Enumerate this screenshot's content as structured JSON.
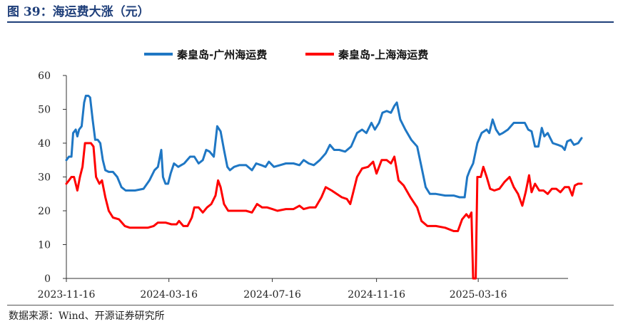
{
  "figure": {
    "title": "图 39：海运费大涨（元）",
    "source": "数据来源：Wind、开源证券研究所"
  },
  "chart_data": {
    "type": "line",
    "title": "",
    "xlabel": "",
    "ylabel": "",
    "ylim": [
      0,
      60
    ],
    "yticks": [
      0,
      10,
      20,
      30,
      40,
      50,
      60
    ],
    "xlim": [
      "2023-11-16",
      "2025-06-30"
    ],
    "xticks": [
      "2023-11-16",
      "2024-03-16",
      "2024-07-16",
      "2024-11-16",
      "2025-03-16"
    ],
    "grid": false,
    "legend_position": "top",
    "series": [
      {
        "name": "秦皇岛-广州海运费",
        "color": "#1f77c4",
        "points": [
          [
            "2023-11-16",
            35
          ],
          [
            "2023-11-19",
            36
          ],
          [
            "2023-11-22",
            36
          ],
          [
            "2023-11-24",
            43
          ],
          [
            "2023-11-27",
            44
          ],
          [
            "2023-11-29",
            42
          ],
          [
            "2023-12-01",
            44
          ],
          [
            "2023-12-04",
            45
          ],
          [
            "2023-12-07",
            52
          ],
          [
            "2023-12-09",
            54
          ],
          [
            "2023-12-12",
            54
          ],
          [
            "2023-12-14",
            53.5
          ],
          [
            "2023-12-17",
            47
          ],
          [
            "2023-12-20",
            41
          ],
          [
            "2023-12-23",
            41
          ],
          [
            "2023-12-26",
            40
          ],
          [
            "2023-12-29",
            35
          ],
          [
            "2024-01-01",
            32
          ],
          [
            "2024-01-05",
            31.5
          ],
          [
            "2024-01-10",
            31.5
          ],
          [
            "2024-01-15",
            30
          ],
          [
            "2024-01-20",
            27
          ],
          [
            "2024-01-25",
            26
          ],
          [
            "2024-02-05",
            26
          ],
          [
            "2024-02-15",
            26.5
          ],
          [
            "2024-02-22",
            29
          ],
          [
            "2024-02-28",
            32
          ],
          [
            "2024-03-03",
            33
          ],
          [
            "2024-03-07",
            38
          ],
          [
            "2024-03-09",
            30
          ],
          [
            "2024-03-12",
            28
          ],
          [
            "2024-03-15",
            28
          ],
          [
            "2024-03-18",
            31
          ],
          [
            "2024-03-22",
            34
          ],
          [
            "2024-03-27",
            33
          ],
          [
            "2024-04-03",
            34
          ],
          [
            "2024-04-10",
            36
          ],
          [
            "2024-04-15",
            36
          ],
          [
            "2024-04-20",
            34
          ],
          [
            "2024-04-25",
            35
          ],
          [
            "2024-04-29",
            38
          ],
          [
            "2024-05-03",
            37.5
          ],
          [
            "2024-05-08",
            36
          ],
          [
            "2024-05-12",
            45
          ],
          [
            "2024-05-16",
            43.5
          ],
          [
            "2024-05-20",
            38
          ],
          [
            "2024-05-24",
            33
          ],
          [
            "2024-05-27",
            32
          ],
          [
            "2024-06-01",
            33
          ],
          [
            "2024-06-07",
            33.5
          ],
          [
            "2024-06-15",
            33.5
          ],
          [
            "2024-06-22",
            32
          ],
          [
            "2024-06-27",
            34
          ],
          [
            "2024-07-03",
            33.5
          ],
          [
            "2024-07-08",
            33
          ],
          [
            "2024-07-12",
            34.5
          ],
          [
            "2024-07-18",
            33
          ],
          [
            "2024-07-25",
            33.5
          ],
          [
            "2024-08-01",
            34
          ],
          [
            "2024-08-10",
            34
          ],
          [
            "2024-08-17",
            33.5
          ],
          [
            "2024-08-22",
            35
          ],
          [
            "2024-08-28",
            34
          ],
          [
            "2024-09-03",
            33.5
          ],
          [
            "2024-09-10",
            35
          ],
          [
            "2024-09-17",
            37
          ],
          [
            "2024-09-22",
            39.5
          ],
          [
            "2024-09-27",
            38
          ],
          [
            "2024-10-03",
            38
          ],
          [
            "2024-10-10",
            37.5
          ],
          [
            "2024-10-17",
            39
          ],
          [
            "2024-10-24",
            43
          ],
          [
            "2024-10-30",
            44
          ],
          [
            "2024-11-04",
            43
          ],
          [
            "2024-11-10",
            46
          ],
          [
            "2024-11-14",
            44
          ],
          [
            "2024-11-19",
            46
          ],
          [
            "2024-11-23",
            49
          ],
          [
            "2024-11-28",
            49.5
          ],
          [
            "2024-12-03",
            49
          ],
          [
            "2024-12-07",
            51
          ],
          [
            "2024-12-10",
            52
          ],
          [
            "2024-12-14",
            47
          ],
          [
            "2024-12-20",
            44
          ],
          [
            "2024-12-27",
            41
          ],
          [
            "2025-01-03",
            39
          ],
          [
            "2025-01-08",
            33
          ],
          [
            "2025-01-13",
            27
          ],
          [
            "2025-01-18",
            25
          ],
          [
            "2025-01-25",
            25
          ],
          [
            "2025-02-05",
            24.5
          ],
          [
            "2025-02-15",
            24.5
          ],
          [
            "2025-02-22",
            24
          ],
          [
            "2025-02-28",
            24
          ],
          [
            "2025-03-03",
            30
          ],
          [
            "2025-03-06",
            32
          ],
          [
            "2025-03-10",
            34
          ],
          [
            "2025-03-15",
            40
          ],
          [
            "2025-03-20",
            43
          ],
          [
            "2025-03-26",
            44
          ],
          [
            "2025-03-29",
            43
          ],
          [
            "2025-04-02",
            47
          ],
          [
            "2025-04-06",
            44
          ],
          [
            "2025-04-10",
            42.5
          ],
          [
            "2025-04-14",
            43
          ],
          [
            "2025-04-20",
            44
          ],
          [
            "2025-04-27",
            46
          ],
          [
            "2025-05-04",
            46
          ],
          [
            "2025-05-10",
            46
          ],
          [
            "2025-05-14",
            44
          ],
          [
            "2025-05-18",
            43.5
          ],
          [
            "2025-05-22",
            39
          ],
          [
            "2025-05-26",
            39
          ],
          [
            "2025-05-30",
            44.5
          ],
          [
            "2025-06-02",
            42
          ],
          [
            "2025-06-06",
            43
          ],
          [
            "2025-06-12",
            40
          ],
          [
            "2025-06-18",
            39.5
          ],
          [
            "2025-06-23",
            39
          ],
          [
            "2025-06-26",
            38
          ],
          [
            "2025-06-29",
            40.5
          ],
          [
            "2025-07-03",
            41
          ],
          [
            "2025-07-07",
            39.5
          ],
          [
            "2025-07-12",
            40
          ],
          [
            "2025-07-16",
            41.5
          ]
        ]
      },
      {
        "name": "秦皇岛-上海海运费",
        "color": "#ff0000",
        "points": [
          [
            "2023-11-16",
            28
          ],
          [
            "2023-11-19",
            29
          ],
          [
            "2023-11-22",
            30
          ],
          [
            "2023-11-25",
            30
          ],
          [
            "2023-11-29",
            26
          ],
          [
            "2023-12-02",
            30
          ],
          [
            "2023-12-05",
            33
          ],
          [
            "2023-12-08",
            40
          ],
          [
            "2023-12-12",
            40
          ],
          [
            "2023-12-15",
            40
          ],
          [
            "2023-12-18",
            39
          ],
          [
            "2023-12-21",
            30
          ],
          [
            "2023-12-25",
            28
          ],
          [
            "2023-12-28",
            29
          ],
          [
            "2024-01-01",
            24
          ],
          [
            "2024-01-05",
            20
          ],
          [
            "2024-01-10",
            18
          ],
          [
            "2024-01-17",
            17.5
          ],
          [
            "2024-01-24",
            15.5
          ],
          [
            "2024-01-30",
            15
          ],
          [
            "2024-02-10",
            15
          ],
          [
            "2024-02-20",
            15
          ],
          [
            "2024-02-27",
            15.5
          ],
          [
            "2024-03-03",
            16.5
          ],
          [
            "2024-03-12",
            16.5
          ],
          [
            "2024-03-19",
            16
          ],
          [
            "2024-03-25",
            16
          ],
          [
            "2024-03-28",
            17
          ],
          [
            "2024-04-02",
            15.5
          ],
          [
            "2024-04-07",
            15.5
          ],
          [
            "2024-04-12",
            18
          ],
          [
            "2024-04-15",
            21
          ],
          [
            "2024-04-20",
            21
          ],
          [
            "2024-04-25",
            19.5
          ],
          [
            "2024-04-30",
            21
          ],
          [
            "2024-05-05",
            22
          ],
          [
            "2024-05-10",
            24.5
          ],
          [
            "2024-05-13",
            29
          ],
          [
            "2024-05-16",
            27
          ],
          [
            "2024-05-20",
            22
          ],
          [
            "2024-05-25",
            20
          ],
          [
            "2024-06-05",
            20
          ],
          [
            "2024-06-15",
            20
          ],
          [
            "2024-06-22",
            19.5
          ],
          [
            "2024-06-28",
            22
          ],
          [
            "2024-07-04",
            21
          ],
          [
            "2024-07-10",
            21
          ],
          [
            "2024-07-16",
            20.5
          ],
          [
            "2024-07-22",
            20
          ],
          [
            "2024-08-01",
            20.5
          ],
          [
            "2024-08-10",
            20.5
          ],
          [
            "2024-08-17",
            21.5
          ],
          [
            "2024-08-22",
            20.5
          ],
          [
            "2024-08-29",
            21
          ],
          [
            "2024-09-05",
            21
          ],
          [
            "2024-09-12",
            24
          ],
          [
            "2024-09-17",
            27
          ],
          [
            "2024-09-24",
            26
          ],
          [
            "2024-09-30",
            25
          ],
          [
            "2024-10-06",
            24
          ],
          [
            "2024-10-12",
            23.5
          ],
          [
            "2024-10-16",
            22
          ],
          [
            "2024-10-19",
            25
          ],
          [
            "2024-10-24",
            30
          ],
          [
            "2024-10-30",
            32.5
          ],
          [
            "2024-11-06",
            33
          ],
          [
            "2024-11-12",
            34.5
          ],
          [
            "2024-11-16",
            31
          ],
          [
            "2024-11-22",
            35
          ],
          [
            "2024-11-28",
            35
          ],
          [
            "2024-12-03",
            34
          ],
          [
            "2024-12-07",
            36
          ],
          [
            "2024-12-12",
            29
          ],
          [
            "2024-12-18",
            27.5
          ],
          [
            "2024-12-26",
            24
          ],
          [
            "2025-01-03",
            21
          ],
          [
            "2025-01-08",
            17
          ],
          [
            "2025-01-15",
            15.5
          ],
          [
            "2025-01-25",
            15.5
          ],
          [
            "2025-02-05",
            15
          ],
          [
            "2025-02-15",
            14
          ],
          [
            "2025-02-20",
            14
          ],
          [
            "2025-02-25",
            17.5
          ],
          [
            "2025-03-02",
            19
          ],
          [
            "2025-03-05",
            18
          ],
          [
            "2025-03-08",
            19.5
          ],
          [
            "2025-03-10",
            0
          ],
          [
            "2025-03-13",
            0
          ],
          [
            "2025-03-15",
            30
          ],
          [
            "2025-03-19",
            30
          ],
          [
            "2025-03-22",
            33
          ],
          [
            "2025-03-26",
            30
          ],
          [
            "2025-03-30",
            26.5
          ],
          [
            "2025-04-04",
            26
          ],
          [
            "2025-04-10",
            26.5
          ],
          [
            "2025-04-16",
            28.5
          ],
          [
            "2025-04-22",
            30
          ],
          [
            "2025-04-27",
            27
          ],
          [
            "2025-05-02",
            25
          ],
          [
            "2025-05-07",
            21.5
          ],
          [
            "2025-05-11",
            25.5
          ],
          [
            "2025-05-15",
            30.5
          ],
          [
            "2025-05-18",
            25.5
          ],
          [
            "2025-05-22",
            28
          ],
          [
            "2025-05-27",
            26
          ],
          [
            "2025-06-01",
            26
          ],
          [
            "2025-06-06",
            25
          ],
          [
            "2025-06-11",
            26.5
          ],
          [
            "2025-06-16",
            26.5
          ],
          [
            "2025-06-21",
            25.5
          ],
          [
            "2025-06-26",
            27
          ],
          [
            "2025-07-01",
            27
          ],
          [
            "2025-07-05",
            24.5
          ],
          [
            "2025-07-08",
            27.5
          ],
          [
            "2025-07-12",
            28
          ],
          [
            "2025-07-16",
            28
          ]
        ]
      }
    ]
  }
}
